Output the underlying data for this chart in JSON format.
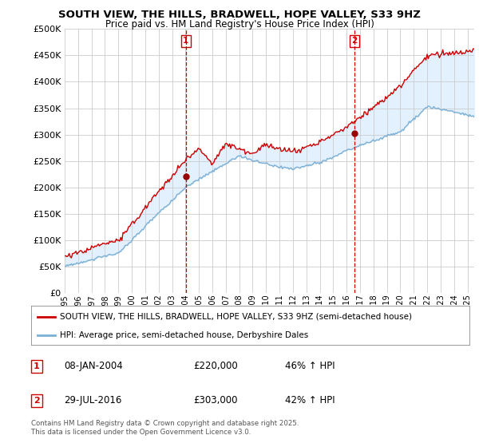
{
  "title_line1": "SOUTH VIEW, THE HILLS, BRADWELL, HOPE VALLEY, S33 9HZ",
  "title_line2": "Price paid vs. HM Land Registry's House Price Index (HPI)",
  "ytick_values": [
    0,
    50000,
    100000,
    150000,
    200000,
    250000,
    300000,
    350000,
    400000,
    450000,
    500000
  ],
  "ylim": [
    0,
    500000
  ],
  "xlim_start": 1995.0,
  "xlim_end": 2025.5,
  "marker1_x": 2004.03,
  "marker1_label": "1",
  "marker1_date": "08-JAN-2004",
  "marker1_price": "£220,000",
  "marker1_hpi": "46% ↑ HPI",
  "marker1_price_val": 220000,
  "marker2_x": 2016.57,
  "marker2_label": "2",
  "marker2_date": "29-JUL-2016",
  "marker2_price": "£303,000",
  "marker2_hpi": "42% ↑ HPI",
  "marker2_price_val": 303000,
  "line1_color": "#cc0000",
  "line2_color": "#7bafd4",
  "fill_color": "#ddeeff",
  "marker_color": "#cc0000",
  "grid_color": "#cccccc",
  "background_color": "#ffffff",
  "legend_line1": "SOUTH VIEW, THE HILLS, BRADWELL, HOPE VALLEY, S33 9HZ (semi-detached house)",
  "legend_line2": "HPI: Average price, semi-detached house, Derbyshire Dales",
  "footer_line1": "Contains HM Land Registry data © Crown copyright and database right 2025.",
  "footer_line2": "This data is licensed under the Open Government Licence v3.0.",
  "xtick_years": [
    1995,
    1996,
    1997,
    1998,
    1999,
    2000,
    2001,
    2002,
    2003,
    2004,
    2005,
    2006,
    2007,
    2008,
    2009,
    2010,
    2011,
    2012,
    2013,
    2014,
    2015,
    2016,
    2017,
    2018,
    2019,
    2020,
    2021,
    2022,
    2023,
    2024,
    2025
  ]
}
